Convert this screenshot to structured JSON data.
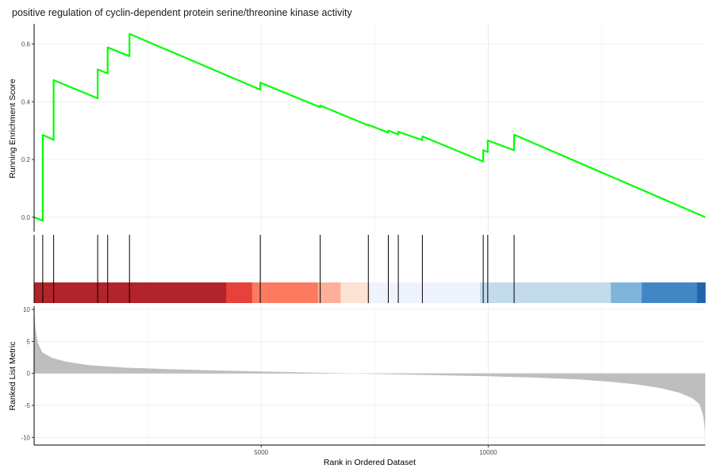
{
  "chart_data": {
    "type": "line",
    "title": "positive regulation of cyclin-dependent protein serine/threonine kinase activity",
    "xlabel": "Rank in Ordered Dataset",
    "xlim": [
      0,
      14780
    ],
    "x_ticks": [
      5000,
      10000
    ],
    "grid": true,
    "enrichment": {
      "ylabel": "Running Enrichment Score",
      "ylim": [
        -0.05,
        0.67
      ],
      "y_ticks": [
        0.0,
        0.2,
        0.4,
        0.6
      ],
      "y_tick_labels": [
        "0.0",
        "0.2",
        "0.4",
        "0.6"
      ],
      "color": "#00ff00",
      "x": [
        0,
        190,
        190,
        430,
        430,
        1400,
        1400,
        1620,
        1620,
        2100,
        2100,
        4980,
        4980,
        6300,
        6300,
        7360,
        7360,
        7800,
        7800,
        8020,
        8020,
        8550,
        8550,
        9890,
        9890,
        9990,
        9990,
        10570,
        10570,
        14780
      ],
      "y": [
        0.0,
        -0.012,
        0.285,
        0.268,
        0.475,
        0.412,
        0.512,
        0.498,
        0.588,
        0.558,
        0.635,
        0.442,
        0.466,
        0.381,
        0.387,
        0.318,
        0.32,
        0.293,
        0.3,
        0.287,
        0.296,
        0.267,
        0.28,
        0.193,
        0.232,
        0.226,
        0.266,
        0.232,
        0.286,
        0.0
      ]
    },
    "hits": [
      190,
      430,
      1400,
      1620,
      2100,
      4980,
      6300,
      7360,
      7800,
      8020,
      8550,
      9890,
      9990,
      10570
    ],
    "color_bar": [
      {
        "start": 0,
        "end": 4230,
        "color": "#b2232a"
      },
      {
        "start": 4230,
        "end": 4800,
        "color": "#e6413b"
      },
      {
        "start": 4800,
        "end": 6250,
        "color": "#fc7a60"
      },
      {
        "start": 6250,
        "end": 6750,
        "color": "#fcb09a"
      },
      {
        "start": 6750,
        "end": 7400,
        "color": "#fde2d6"
      },
      {
        "start": 7400,
        "end": 9820,
        "color": "#eff3fd"
      },
      {
        "start": 9820,
        "end": 12700,
        "color": "#c3dbea"
      },
      {
        "start": 12700,
        "end": 13380,
        "color": "#7fb5db"
      },
      {
        "start": 13380,
        "end": 14600,
        "color": "#4287c5"
      },
      {
        "start": 14600,
        "end": 14780,
        "color": "#1f64ad"
      }
    ],
    "ranked": {
      "ylabel": "Ranked List Metric",
      "ylim": [
        -11.2,
        10.5
      ],
      "y_ticks": [
        10,
        5,
        0,
        -5,
        -10
      ],
      "y_tick_labels": [
        "10",
        "5",
        "0",
        "-5",
        "-10"
      ],
      "color": "#bebebe",
      "x": [
        0,
        30,
        80,
        180,
        400,
        700,
        1200,
        2000,
        3000,
        4000,
        5000,
        6000,
        7000,
        8000,
        9000,
        10000,
        11000,
        12000,
        12700,
        13300,
        13800,
        14200,
        14500,
        14650,
        14730,
        14770,
        14780
      ],
      "y": [
        10.2,
        7.0,
        4.8,
        3.3,
        2.4,
        1.85,
        1.3,
        0.9,
        0.65,
        0.45,
        0.3,
        0.15,
        0.0,
        -0.15,
        -0.3,
        -0.45,
        -0.65,
        -0.95,
        -1.3,
        -1.75,
        -2.3,
        -3.0,
        -3.9,
        -4.8,
        -6.5,
        -8.5,
        -10.8
      ]
    }
  }
}
